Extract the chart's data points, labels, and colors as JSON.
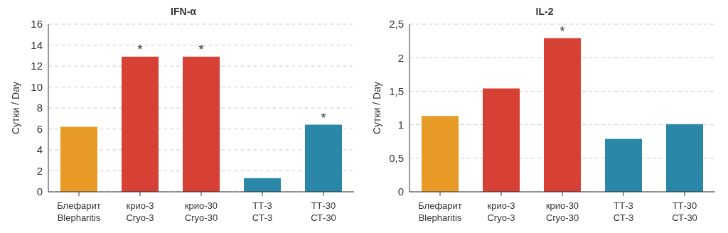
{
  "chart_data": [
    {
      "type": "bar",
      "title": "IFN-α",
      "ylabel": "Сутки / Day",
      "categories": [
        "Блефарит\nBlepharitis",
        "крио-3\nCryo-3",
        "крио-30\nCryo-30",
        "ТТ-3\nСТ-3",
        "ТТ-30\nСТ-30"
      ],
      "values": [
        6.2,
        12.9,
        12.9,
        1.3,
        6.4
      ],
      "colors": [
        "#e89a26",
        "#d64035",
        "#d64035",
        "#2a87a8",
        "#2a87a8"
      ],
      "ylim": [
        0,
        16
      ],
      "yticks": [
        0,
        2,
        4,
        6,
        8,
        10,
        12,
        14,
        16
      ],
      "grid": "y",
      "annotations": [
        {
          "text": "*",
          "x": "крио-3\nCryo-3",
          "y": 12.9
        },
        {
          "text": "*",
          "x": "крио-30\nCryo-30",
          "y": 12.9
        },
        {
          "text": "*",
          "x": "ТТ-30\nСТ-30",
          "y": 6.4
        }
      ]
    },
    {
      "type": "bar",
      "title": "IL-2",
      "ylabel": "Сутки / Day",
      "categories": [
        "Блефарит\nBlepharitis",
        "крио-3\nCryo-3",
        "крио-30\nCryo-30",
        "ТТ-3\nСТ-3",
        "ТТ-30\nСТ-30"
      ],
      "values": [
        1.13,
        1.54,
        2.29,
        0.79,
        1.01
      ],
      "colors": [
        "#e89a26",
        "#d64035",
        "#d64035",
        "#2a87a8",
        "#2a87a8"
      ],
      "ylim": [
        0,
        2.5
      ],
      "yticks": [
        0,
        {
          "value": 0.5,
          "label": "0,5"
        },
        1,
        {
          "value": 1.5,
          "label": "1,5"
        },
        2,
        {
          "value": 2.5,
          "label": "2,5"
        }
      ],
      "grid": "y",
      "annotations": [
        {
          "text": "*",
          "x": "крио-30\nCryo-30",
          "y": 2.29
        }
      ]
    }
  ]
}
